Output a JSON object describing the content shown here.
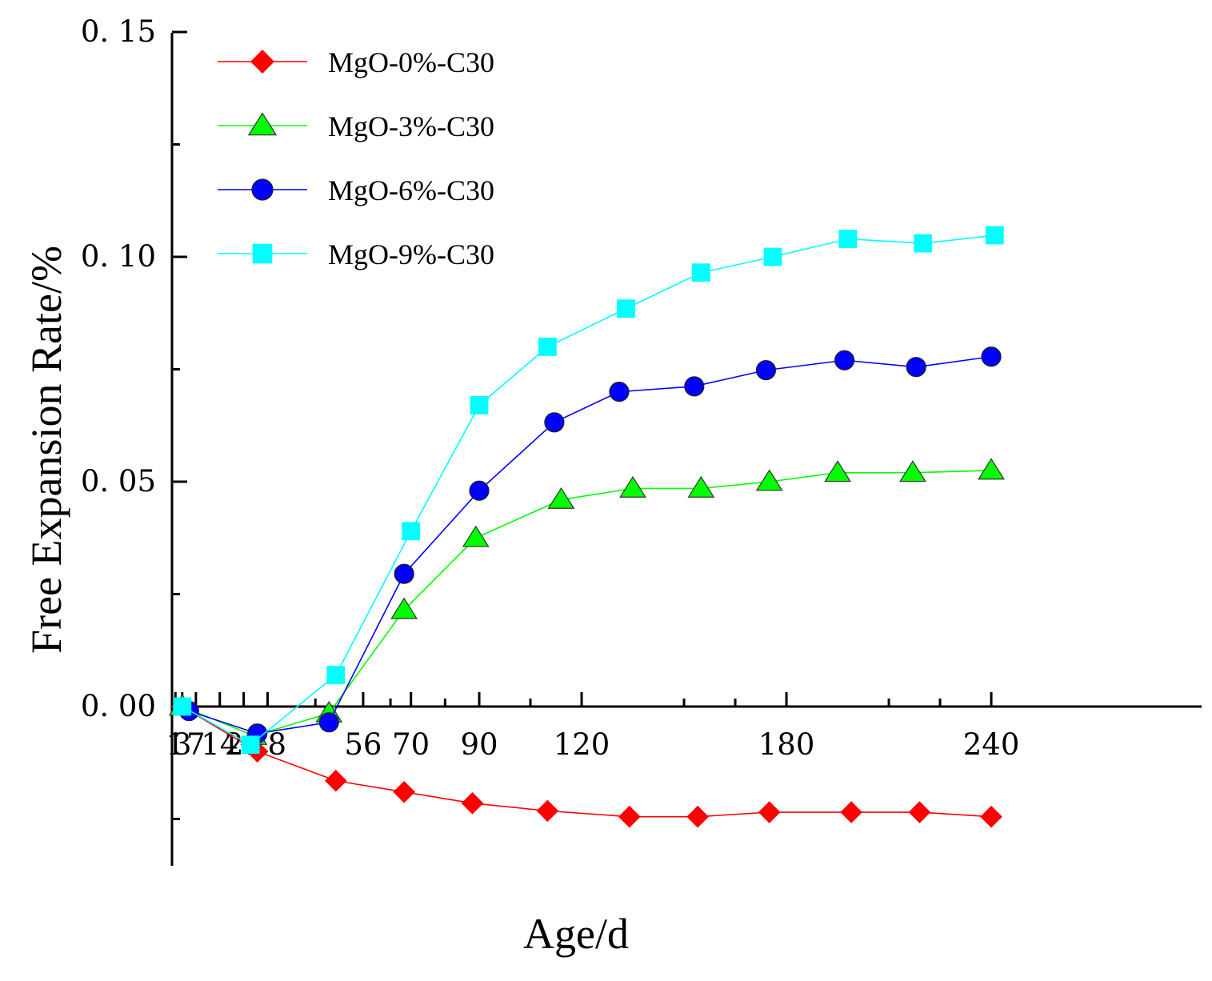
{
  "chart_data": {
    "type": "line",
    "title": "",
    "xlabel": "Age/d",
    "ylabel": "Free Expansion Rate/%",
    "xlim": [
      0,
      300
    ],
    "ylim": [
      -0.035,
      0.15
    ],
    "x_ticks": [
      {
        "value": 1,
        "label": "1"
      },
      {
        "value": 3,
        "label": "3"
      },
      {
        "value": 7,
        "label": "7"
      },
      {
        "value": 14,
        "label": "14"
      },
      {
        "value": 21,
        "label": "21"
      },
      {
        "value": 28,
        "label": "28"
      },
      {
        "value": 56,
        "label": "56"
      },
      {
        "value": 70,
        "label": "70"
      },
      {
        "value": 90,
        "label": "90"
      },
      {
        "value": 120,
        "label": "120"
      },
      {
        "value": 180,
        "label": "180"
      },
      {
        "value": 240,
        "label": "240"
      }
    ],
    "y_ticks": [
      {
        "value": 0.0,
        "label": "0. 00"
      },
      {
        "value": 0.05,
        "label": "0. 05"
      },
      {
        "value": 0.1,
        "label": "0. 10"
      },
      {
        "value": 0.15,
        "label": "0. 15"
      }
    ],
    "y_minor_ticks": [
      -0.025,
      0.025,
      0.075,
      0.125
    ],
    "x_minor_ticks": [
      42,
      64,
      80,
      105,
      150,
      165,
      210,
      225
    ],
    "grid": false,
    "legend_position": "top-left",
    "series": [
      {
        "name": "MgO-0%-C30",
        "color": "#ff0000",
        "marker": "diamond",
        "x": [
          3,
          25,
          48,
          68,
          88,
          110,
          134,
          154,
          175,
          199,
          219,
          240
        ],
        "y": [
          0.0,
          -0.01,
          -0.0165,
          -0.019,
          -0.0215,
          -0.0232,
          -0.0245,
          -0.0245,
          -0.0235,
          -0.0235,
          -0.0235,
          -0.0245
        ]
      },
      {
        "name": "MgO-3%-C30",
        "color": "#00ff00",
        "marker": "triangle",
        "x": [
          3,
          24,
          46,
          68,
          89,
          114,
          135,
          155,
          175,
          195,
          217,
          240
        ],
        "y": [
          0.0,
          -0.0065,
          -0.0015,
          0.0215,
          0.0375,
          0.046,
          0.0485,
          0.0485,
          0.05,
          0.052,
          0.052,
          0.0525
        ]
      },
      {
        "name": "MgO-6%-C30",
        "color": "#0000ff",
        "marker": "circle",
        "x": [
          5,
          25,
          46,
          68,
          90,
          112,
          131,
          153,
          174,
          197,
          218,
          240
        ],
        "y": [
          -0.001,
          -0.006,
          -0.0035,
          0.0295,
          0.048,
          0.0632,
          0.07,
          0.0712,
          0.0748,
          0.077,
          0.0755,
          0.0778
        ]
      },
      {
        "name": "MgO-9%-C30",
        "color": "#00ffff",
        "marker": "square",
        "x": [
          3,
          23,
          48,
          70,
          90,
          110,
          133,
          155,
          176,
          198,
          220,
          241
        ],
        "y": [
          0.0,
          -0.0085,
          0.007,
          0.039,
          0.067,
          0.08,
          0.0885,
          0.0965,
          0.1,
          0.104,
          0.103,
          0.1048
        ]
      }
    ]
  }
}
